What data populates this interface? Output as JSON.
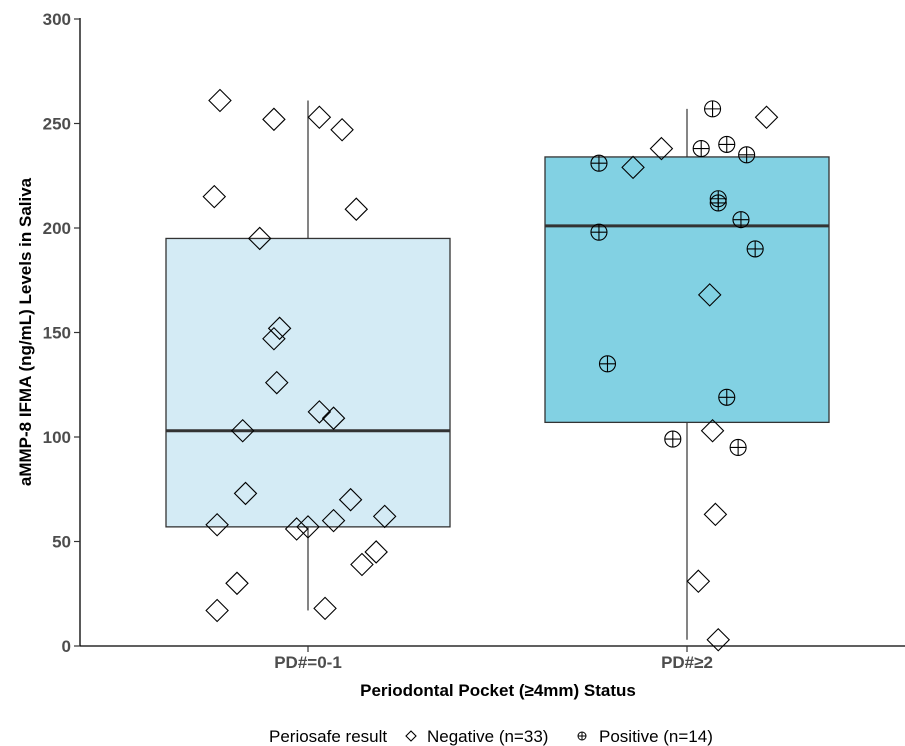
{
  "chart_data": {
    "type": "box",
    "xlabel": "Periodontal Pocket (≥4mm) Status",
    "ylabel": "aMMP-8 IFMA (ng/mL) Levels in Saliva",
    "ylim": [
      0,
      300
    ],
    "yticks": [
      0,
      50,
      100,
      150,
      200,
      250,
      300
    ],
    "categories": [
      "PD#=0-1",
      "PD#≥2"
    ],
    "boxes": [
      {
        "category": "PD#=0-1",
        "q1": 57,
        "median": 103,
        "q3": 195,
        "whisker_low": 17,
        "whisker_high": 261,
        "fill": "#d4ebf5"
      },
      {
        "category": "PD#≥2",
        "q1": 107,
        "median": 201,
        "q3": 234,
        "whisker_low": 3,
        "whisker_high": 257,
        "fill": "#82d1e3"
      }
    ],
    "points": [
      {
        "group": 0,
        "jitter": -0.31,
        "y": 261,
        "result": "Negative"
      },
      {
        "group": 0,
        "jitter": -0.12,
        "y": 252,
        "result": "Negative"
      },
      {
        "group": 0,
        "jitter": 0.04,
        "y": 253,
        "result": "Negative"
      },
      {
        "group": 0,
        "jitter": 0.12,
        "y": 247,
        "result": "Negative"
      },
      {
        "group": 0,
        "jitter": -0.33,
        "y": 215,
        "result": "Negative"
      },
      {
        "group": 0,
        "jitter": 0.17,
        "y": 209,
        "result": "Negative"
      },
      {
        "group": 0,
        "jitter": -0.17,
        "y": 195,
        "result": "Negative"
      },
      {
        "group": 0,
        "jitter": -0.1,
        "y": 152,
        "result": "Negative"
      },
      {
        "group": 0,
        "jitter": -0.12,
        "y": 147,
        "result": "Negative"
      },
      {
        "group": 0,
        "jitter": -0.11,
        "y": 126,
        "result": "Negative"
      },
      {
        "group": 0,
        "jitter": 0.04,
        "y": 112,
        "result": "Negative"
      },
      {
        "group": 0,
        "jitter": 0.09,
        "y": 109,
        "result": "Negative"
      },
      {
        "group": 0,
        "jitter": -0.23,
        "y": 103,
        "result": "Negative"
      },
      {
        "group": 0,
        "jitter": -0.22,
        "y": 73,
        "result": "Negative"
      },
      {
        "group": 0,
        "jitter": 0.15,
        "y": 70,
        "result": "Negative"
      },
      {
        "group": 0,
        "jitter": 0.27,
        "y": 62,
        "result": "Negative"
      },
      {
        "group": 0,
        "jitter": 0.09,
        "y": 60,
        "result": "Negative"
      },
      {
        "group": 0,
        "jitter": -0.32,
        "y": 58,
        "result": "Negative"
      },
      {
        "group": 0,
        "jitter": 0.0,
        "y": 57,
        "result": "Negative"
      },
      {
        "group": 0,
        "jitter": -0.04,
        "y": 56,
        "result": "Negative"
      },
      {
        "group": 0,
        "jitter": 0.24,
        "y": 45,
        "result": "Negative"
      },
      {
        "group": 0,
        "jitter": 0.19,
        "y": 39,
        "result": "Negative"
      },
      {
        "group": 0,
        "jitter": -0.25,
        "y": 30,
        "result": "Negative"
      },
      {
        "group": 0,
        "jitter": 0.06,
        "y": 18,
        "result": "Negative"
      },
      {
        "group": 0,
        "jitter": -0.32,
        "y": 17,
        "result": "Negative"
      },
      {
        "group": 1,
        "jitter": 0.09,
        "y": 257,
        "result": "Positive"
      },
      {
        "group": 1,
        "jitter": 0.28,
        "y": 253,
        "result": "Negative"
      },
      {
        "group": 1,
        "jitter": 0.14,
        "y": 240,
        "result": "Positive"
      },
      {
        "group": 1,
        "jitter": 0.05,
        "y": 238,
        "result": "Positive"
      },
      {
        "group": 1,
        "jitter": -0.09,
        "y": 238,
        "result": "Negative"
      },
      {
        "group": 1,
        "jitter": 0.21,
        "y": 235,
        "result": "Positive"
      },
      {
        "group": 1,
        "jitter": -0.31,
        "y": 231,
        "result": "Positive"
      },
      {
        "group": 1,
        "jitter": -0.19,
        "y": 229,
        "result": "Negative"
      },
      {
        "group": 1,
        "jitter": 0.11,
        "y": 214,
        "result": "Positive"
      },
      {
        "group": 1,
        "jitter": 0.11,
        "y": 212,
        "result": "Positive"
      },
      {
        "group": 1,
        "jitter": 0.19,
        "y": 204,
        "result": "Positive"
      },
      {
        "group": 1,
        "jitter": -0.31,
        "y": 198,
        "result": "Positive"
      },
      {
        "group": 1,
        "jitter": 0.24,
        "y": 190,
        "result": "Positive"
      },
      {
        "group": 1,
        "jitter": 0.08,
        "y": 168,
        "result": "Negative"
      },
      {
        "group": 1,
        "jitter": -0.28,
        "y": 135,
        "result": "Positive"
      },
      {
        "group": 1,
        "jitter": 0.14,
        "y": 119,
        "result": "Positive"
      },
      {
        "group": 1,
        "jitter": 0.09,
        "y": 103,
        "result": "Negative"
      },
      {
        "group": 1,
        "jitter": -0.05,
        "y": 99,
        "result": "Positive"
      },
      {
        "group": 1,
        "jitter": 0.18,
        "y": 95,
        "result": "Positive"
      },
      {
        "group": 1,
        "jitter": 0.1,
        "y": 63,
        "result": "Negative"
      },
      {
        "group": 1,
        "jitter": 0.04,
        "y": 31,
        "result": "Negative"
      },
      {
        "group": 1,
        "jitter": 0.11,
        "y": 3,
        "result": "Negative"
      }
    ],
    "legend": {
      "title": "Periosafe result",
      "position": "bottom",
      "entries": [
        {
          "label": "Negative (n=33)",
          "symbol": "diamond"
        },
        {
          "label": "Positive (n=14)",
          "symbol": "circle-plus"
        }
      ]
    },
    "grid": false
  }
}
